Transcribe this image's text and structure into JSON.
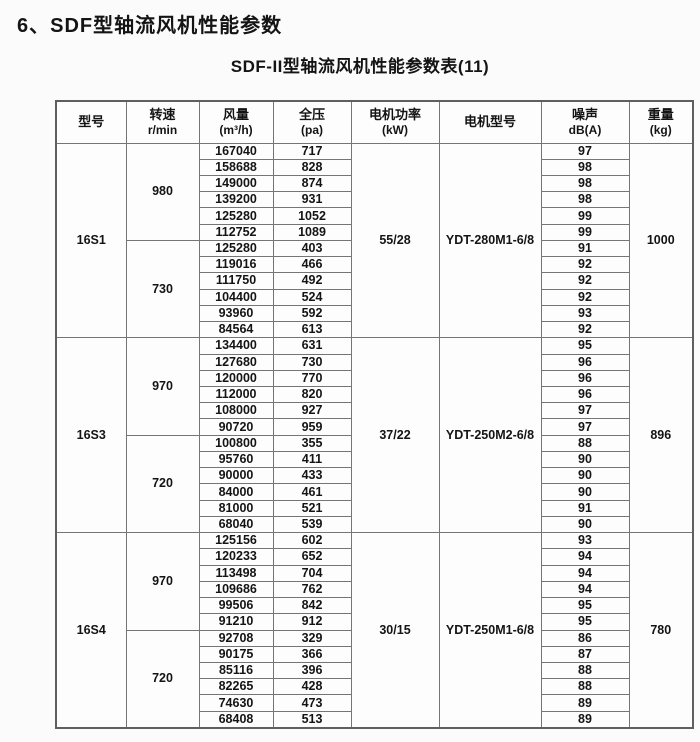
{
  "page": {
    "title": "6、SDF型轴流风机性能参数",
    "subtitle": "SDF-II型轴流风机性能参数表(11)"
  },
  "table": {
    "headers": {
      "model": "型号",
      "speed": "转速",
      "speed_unit": "r/min",
      "flow": "风量",
      "flow_unit": "(m³/h)",
      "pressure": "全压",
      "pressure_unit": "(pa)",
      "power": "电机功率",
      "power_unit": "(kW)",
      "motor": "电机型号",
      "noise": "噪声",
      "noise_unit": "dB(A)",
      "weight": "重量",
      "weight_unit": "(kg)"
    },
    "sections": [
      {
        "model": "16S1",
        "power": "55/28",
        "motor": "YDT-280M1-6/8",
        "weight": "1000",
        "speed_groups": [
          {
            "speed": "980",
            "rows": [
              {
                "flow": "167040",
                "pressure": "717",
                "noise": "97"
              },
              {
                "flow": "158688",
                "pressure": "828",
                "noise": "98"
              },
              {
                "flow": "149000",
                "pressure": "874",
                "noise": "98"
              },
              {
                "flow": "139200",
                "pressure": "931",
                "noise": "98"
              },
              {
                "flow": "125280",
                "pressure": "1052",
                "noise": "99"
              },
              {
                "flow": "112752",
                "pressure": "1089",
                "noise": "99"
              }
            ]
          },
          {
            "speed": "730",
            "rows": [
              {
                "flow": "125280",
                "pressure": "403",
                "noise": "91"
              },
              {
                "flow": "119016",
                "pressure": "466",
                "noise": "92"
              },
              {
                "flow": "111750",
                "pressure": "492",
                "noise": "92"
              },
              {
                "flow": "104400",
                "pressure": "524",
                "noise": "92"
              },
              {
                "flow": "93960",
                "pressure": "592",
                "noise": "93"
              },
              {
                "flow": "84564",
                "pressure": "613",
                "noise": "92"
              }
            ]
          }
        ]
      },
      {
        "model": "16S3",
        "power": "37/22",
        "motor": "YDT-250M2-6/8",
        "weight": "896",
        "speed_groups": [
          {
            "speed": "970",
            "rows": [
              {
                "flow": "134400",
                "pressure": "631",
                "noise": "95"
              },
              {
                "flow": "127680",
                "pressure": "730",
                "noise": "96"
              },
              {
                "flow": "120000",
                "pressure": "770",
                "noise": "96"
              },
              {
                "flow": "112000",
                "pressure": "820",
                "noise": "96"
              },
              {
                "flow": "108000",
                "pressure": "927",
                "noise": "97"
              },
              {
                "flow": "90720",
                "pressure": "959",
                "noise": "97"
              }
            ]
          },
          {
            "speed": "720",
            "rows": [
              {
                "flow": "100800",
                "pressure": "355",
                "noise": "88"
              },
              {
                "flow": "95760",
                "pressure": "411",
                "noise": "90"
              },
              {
                "flow": "90000",
                "pressure": "433",
                "noise": "90"
              },
              {
                "flow": "84000",
                "pressure": "461",
                "noise": "90"
              },
              {
                "flow": "81000",
                "pressure": "521",
                "noise": "91"
              },
              {
                "flow": "68040",
                "pressure": "539",
                "noise": "90"
              }
            ]
          }
        ]
      },
      {
        "model": "16S4",
        "power": "30/15",
        "motor": "YDT-250M1-6/8",
        "weight": "780",
        "speed_groups": [
          {
            "speed": "970",
            "rows": [
              {
                "flow": "125156",
                "pressure": "602",
                "noise": "93"
              },
              {
                "flow": "120233",
                "pressure": "652",
                "noise": "94"
              },
              {
                "flow": "113498",
                "pressure": "704",
                "noise": "94"
              },
              {
                "flow": "109686",
                "pressure": "762",
                "noise": "94"
              },
              {
                "flow": "99506",
                "pressure": "842",
                "noise": "95"
              },
              {
                "flow": "91210",
                "pressure": "912",
                "noise": "95"
              }
            ]
          },
          {
            "speed": "720",
            "rows": [
              {
                "flow": "92708",
                "pressure": "329",
                "noise": "86"
              },
              {
                "flow": "90175",
                "pressure": "366",
                "noise": "87"
              },
              {
                "flow": "85116",
                "pressure": "396",
                "noise": "88"
              },
              {
                "flow": "82265",
                "pressure": "428",
                "noise": "88"
              },
              {
                "flow": "74630",
                "pressure": "473",
                "noise": "89"
              },
              {
                "flow": "68408",
                "pressure": "513",
                "noise": "89"
              }
            ]
          }
        ]
      }
    ]
  }
}
